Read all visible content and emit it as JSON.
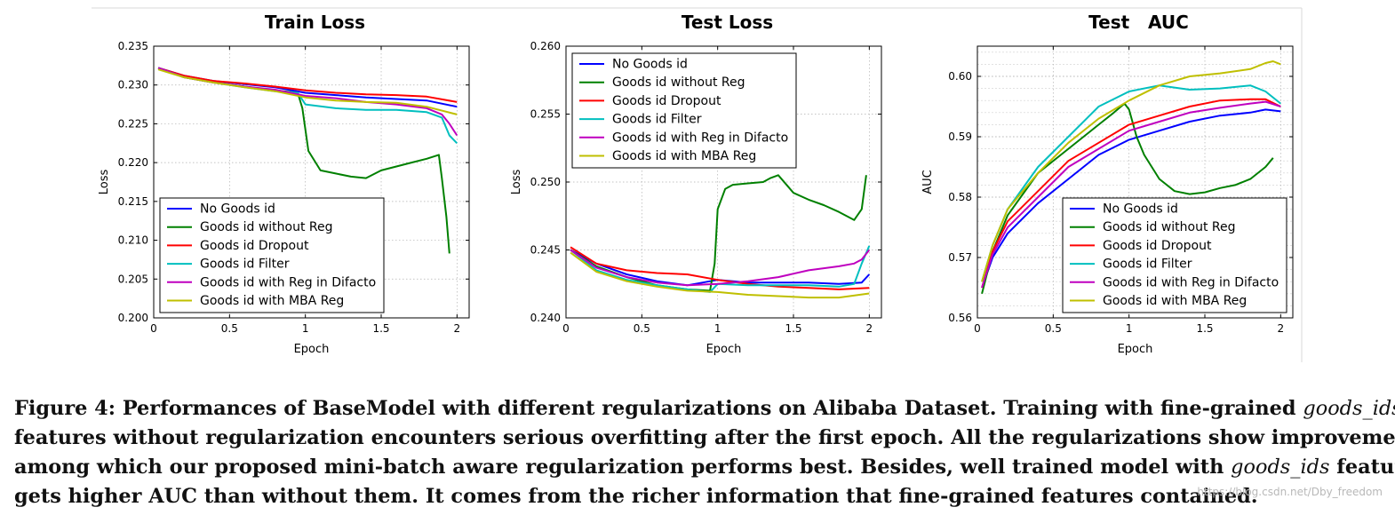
{
  "chart_data": [
    {
      "type": "line",
      "title": "Train Loss",
      "xlabel": "Epoch",
      "ylabel": "Loss",
      "xlim": [
        0,
        2.08
      ],
      "ylim": [
        0.2,
        0.235
      ],
      "xticks": [
        0,
        0.5,
        1,
        1.5,
        2
      ],
      "xtick_labels": [
        "0",
        "0.5",
        "1",
        "1.5",
        "2"
      ],
      "yticks": [
        0.2,
        0.205,
        0.21,
        0.215,
        0.22,
        0.225,
        0.23,
        0.235
      ],
      "ytick_labels": [
        "0.200",
        "0.205",
        "0.210",
        "0.215",
        "0.220",
        "0.225",
        "0.230",
        "0.235"
      ],
      "grid": true,
      "legend_position": "bottom-left",
      "series": [
        {
          "name": "No Goods id",
          "color": "#0000ff",
          "x": [
            0.03,
            0.2,
            0.4,
            0.6,
            0.8,
            1.0,
            1.2,
            1.4,
            1.6,
            1.8,
            2.0
          ],
          "y": [
            0.2322,
            0.2312,
            0.2305,
            0.2301,
            0.2297,
            0.229,
            0.2287,
            0.2284,
            0.2282,
            0.228,
            0.2272
          ]
        },
        {
          "name": "Goods id without Reg",
          "color": "#008000",
          "x": [
            0.03,
            0.2,
            0.4,
            0.6,
            0.8,
            0.95,
            0.98,
            1.02,
            1.1,
            1.2,
            1.3,
            1.4,
            1.5,
            1.6,
            1.7,
            1.8,
            1.88,
            1.9,
            1.93,
            1.95
          ],
          "y": [
            0.2322,
            0.231,
            0.2303,
            0.2298,
            0.2293,
            0.229,
            0.227,
            0.2215,
            0.219,
            0.2186,
            0.2182,
            0.218,
            0.219,
            0.2195,
            0.22,
            0.2205,
            0.221,
            0.218,
            0.213,
            0.2083
          ]
        },
        {
          "name": "Goods id Dropout",
          "color": "#ff0000",
          "x": [
            0.03,
            0.2,
            0.4,
            0.6,
            0.8,
            1.0,
            1.2,
            1.4,
            1.6,
            1.8,
            2.0
          ],
          "y": [
            0.2322,
            0.2312,
            0.2305,
            0.2302,
            0.2298,
            0.2293,
            0.229,
            0.2288,
            0.2287,
            0.2285,
            0.2278
          ]
        },
        {
          "name": "Goods id Filter",
          "color": "#00bfbf",
          "x": [
            0.03,
            0.2,
            0.4,
            0.6,
            0.8,
            0.95,
            1.0,
            1.2,
            1.4,
            1.6,
            1.8,
            1.9,
            1.95,
            2.0
          ],
          "y": [
            0.2322,
            0.231,
            0.2303,
            0.2297,
            0.2292,
            0.229,
            0.2275,
            0.227,
            0.2268,
            0.2268,
            0.2265,
            0.2258,
            0.2235,
            0.2225
          ]
        },
        {
          "name": "Goods id with Reg in Difacto",
          "color": "#bf00bf",
          "x": [
            0.03,
            0.2,
            0.4,
            0.6,
            0.8,
            1.0,
            1.2,
            1.4,
            1.6,
            1.8,
            1.9,
            1.95,
            2.0
          ],
          "y": [
            0.2322,
            0.231,
            0.2303,
            0.2298,
            0.2294,
            0.2286,
            0.2283,
            0.2278,
            0.2275,
            0.227,
            0.2262,
            0.225,
            0.2235
          ]
        },
        {
          "name": "Goods id with MBA Reg",
          "color": "#bfbf00",
          "x": [
            0.03,
            0.2,
            0.4,
            0.6,
            0.8,
            1.0,
            1.2,
            1.4,
            1.6,
            1.8,
            2.0
          ],
          "y": [
            0.232,
            0.231,
            0.2303,
            0.2297,
            0.2292,
            0.2284,
            0.228,
            0.2278,
            0.2277,
            0.2272,
            0.2262
          ]
        }
      ]
    },
    {
      "type": "line",
      "title": "Test Loss",
      "xlabel": "Epoch",
      "ylabel": "Loss",
      "xlim": [
        0,
        2.08
      ],
      "ylim": [
        0.24,
        0.26
      ],
      "xticks": [
        0,
        0.5,
        1,
        1.5,
        2
      ],
      "xtick_labels": [
        "0",
        "0.5",
        "1",
        "1.5",
        "2"
      ],
      "yticks": [
        0.24,
        0.245,
        0.25,
        0.255,
        0.26
      ],
      "ytick_labels": [
        "0.240",
        "0.245",
        "0.250",
        "0.255",
        "0.260"
      ],
      "grid": true,
      "legend_position": "top-left",
      "series": [
        {
          "name": "No Goods id",
          "color": "#0000ff",
          "x": [
            0.03,
            0.2,
            0.4,
            0.6,
            0.8,
            1.0,
            1.2,
            1.4,
            1.6,
            1.8,
            1.95,
            2.0
          ],
          "y": [
            0.245,
            0.244,
            0.2432,
            0.2427,
            0.2424,
            0.2428,
            0.2426,
            0.2426,
            0.2426,
            0.2425,
            0.2426,
            0.2432
          ]
        },
        {
          "name": "Goods id without Reg",
          "color": "#008000",
          "x": [
            0.03,
            0.2,
            0.4,
            0.6,
            0.8,
            0.95,
            0.98,
            1.0,
            1.05,
            1.1,
            1.2,
            1.3,
            1.35,
            1.4,
            1.5,
            1.6,
            1.7,
            1.8,
            1.9,
            1.95,
            1.98
          ],
          "y": [
            0.245,
            0.2438,
            0.243,
            0.2424,
            0.2421,
            0.242,
            0.244,
            0.248,
            0.2495,
            0.2498,
            0.2499,
            0.25,
            0.2503,
            0.2505,
            0.2492,
            0.2487,
            0.2483,
            0.2478,
            0.2472,
            0.248,
            0.2505
          ]
        },
        {
          "name": "Goods id Dropout",
          "color": "#ff0000",
          "x": [
            0.03,
            0.2,
            0.4,
            0.6,
            0.8,
            1.0,
            1.2,
            1.4,
            1.6,
            1.8,
            2.0
          ],
          "y": [
            0.2452,
            0.244,
            0.2435,
            0.2433,
            0.2432,
            0.2428,
            0.2425,
            0.2423,
            0.2422,
            0.2421,
            0.2422
          ]
        },
        {
          "name": "Goods id Filter",
          "color": "#00bfbf",
          "x": [
            0.03,
            0.2,
            0.4,
            0.6,
            0.8,
            0.95,
            1.0,
            1.2,
            1.4,
            1.6,
            1.8,
            1.9,
            1.95,
            2.0
          ],
          "y": [
            0.245,
            0.2435,
            0.2428,
            0.2424,
            0.2421,
            0.2419,
            0.2425,
            0.2424,
            0.2424,
            0.2424,
            0.2423,
            0.2425,
            0.244,
            0.2453
          ]
        },
        {
          "name": "Goods id with Reg in Difacto",
          "color": "#bf00bf",
          "x": [
            0.03,
            0.2,
            0.4,
            0.6,
            0.8,
            1.0,
            1.2,
            1.4,
            1.6,
            1.8,
            1.9,
            1.95,
            2.0
          ],
          "y": [
            0.245,
            0.2437,
            0.243,
            0.2426,
            0.2424,
            0.2425,
            0.2427,
            0.243,
            0.2435,
            0.2438,
            0.244,
            0.2443,
            0.245
          ]
        },
        {
          "name": "Goods id with MBA Reg",
          "color": "#bfbf00",
          "x": [
            0.03,
            0.2,
            0.4,
            0.6,
            0.8,
            1.0,
            1.2,
            1.4,
            1.6,
            1.8,
            2.0
          ],
          "y": [
            0.2448,
            0.2434,
            0.2427,
            0.2423,
            0.242,
            0.2419,
            0.2417,
            0.2416,
            0.2415,
            0.2415,
            0.2418
          ]
        }
      ]
    },
    {
      "type": "line",
      "title": "Test   AUC",
      "xlabel": "Epoch",
      "ylabel": "AUC",
      "xlim": [
        0,
        2.08
      ],
      "ylim": [
        0.56,
        0.605
      ],
      "xticks": [
        0,
        0.5,
        1,
        1.5,
        2
      ],
      "xtick_labels": [
        "0",
        "0.5",
        "1",
        "1.5",
        "2"
      ],
      "yticks": [
        0.56,
        0.57,
        0.58,
        0.59,
        0.6
      ],
      "ytick_labels": [
        "0.56",
        "0.57",
        "0.58",
        "0.59",
        "0.60"
      ],
      "grid": true,
      "minor_grid_y": true,
      "legend_position": "bottom-right",
      "series": [
        {
          "name": "No Goods id",
          "color": "#0000ff",
          "x": [
            0.03,
            0.1,
            0.2,
            0.4,
            0.6,
            0.8,
            1.0,
            1.2,
            1.4,
            1.6,
            1.8,
            1.9,
            2.0
          ],
          "y": [
            0.565,
            0.57,
            0.574,
            0.579,
            0.583,
            0.587,
            0.5895,
            0.591,
            0.5925,
            0.5935,
            0.594,
            0.5945,
            0.5942
          ]
        },
        {
          "name": "Goods id without Reg",
          "color": "#008000",
          "x": [
            0.03,
            0.1,
            0.2,
            0.4,
            0.6,
            0.8,
            0.9,
            0.97,
            1.0,
            1.05,
            1.1,
            1.2,
            1.3,
            1.4,
            1.5,
            1.6,
            1.7,
            1.8,
            1.9,
            1.95
          ],
          "y": [
            0.564,
            0.571,
            0.577,
            0.584,
            0.588,
            0.592,
            0.594,
            0.5955,
            0.5945,
            0.59,
            0.587,
            0.583,
            0.581,
            0.5805,
            0.5808,
            0.5815,
            0.582,
            0.583,
            0.585,
            0.5865
          ]
        },
        {
          "name": "Goods id Dropout",
          "color": "#ff0000",
          "x": [
            0.03,
            0.1,
            0.2,
            0.4,
            0.6,
            0.8,
            1.0,
            1.2,
            1.4,
            1.6,
            1.8,
            1.9,
            2.0
          ],
          "y": [
            0.565,
            0.571,
            0.576,
            0.581,
            0.586,
            0.589,
            0.592,
            0.5935,
            0.595,
            0.596,
            0.5962,
            0.5962,
            0.595
          ]
        },
        {
          "name": "Goods id Filter",
          "color": "#00bfbf",
          "x": [
            0.03,
            0.1,
            0.2,
            0.4,
            0.6,
            0.8,
            1.0,
            1.2,
            1.4,
            1.6,
            1.8,
            1.9,
            2.0
          ],
          "y": [
            0.566,
            0.572,
            0.578,
            0.585,
            0.59,
            0.595,
            0.5975,
            0.5985,
            0.5978,
            0.598,
            0.5985,
            0.5975,
            0.5955
          ]
        },
        {
          "name": "Goods id with Reg in Difacto",
          "color": "#bf00bf",
          "x": [
            0.03,
            0.1,
            0.2,
            0.4,
            0.6,
            0.8,
            1.0,
            1.2,
            1.4,
            1.6,
            1.8,
            1.9,
            2.0
          ],
          "y": [
            0.565,
            0.5705,
            0.575,
            0.58,
            0.585,
            0.588,
            0.591,
            0.5925,
            0.594,
            0.5948,
            0.5955,
            0.5958,
            0.595
          ]
        },
        {
          "name": "Goods id with MBA Reg",
          "color": "#bfbf00",
          "x": [
            0.03,
            0.1,
            0.2,
            0.4,
            0.6,
            0.8,
            1.0,
            1.2,
            1.4,
            1.6,
            1.8,
            1.9,
            1.95,
            2.0
          ],
          "y": [
            0.566,
            0.572,
            0.578,
            0.584,
            0.589,
            0.593,
            0.596,
            0.5985,
            0.6,
            0.6005,
            0.6012,
            0.6022,
            0.6025,
            0.602
          ]
        }
      ]
    }
  ],
  "caption": {
    "part1": "Figure 4: Performances of BaseModel with different regularizations on Alibaba Dataset. Training with fine-grained ",
    "em1": "goods_ids",
    "part2": "features without regularization encounters serious overfitting after the first epoch. All the regularizations show improvement,",
    "part3": "among which our proposed mini-batch aware regularization performs best. Besides, well trained model with ",
    "em2": "goods_ids",
    "part4": " features",
    "part5": "gets higher AUC than without them. It comes from the richer information that fine-grained features contained."
  },
  "watermark": "https://blog.csdn.net/Dby_freedom"
}
